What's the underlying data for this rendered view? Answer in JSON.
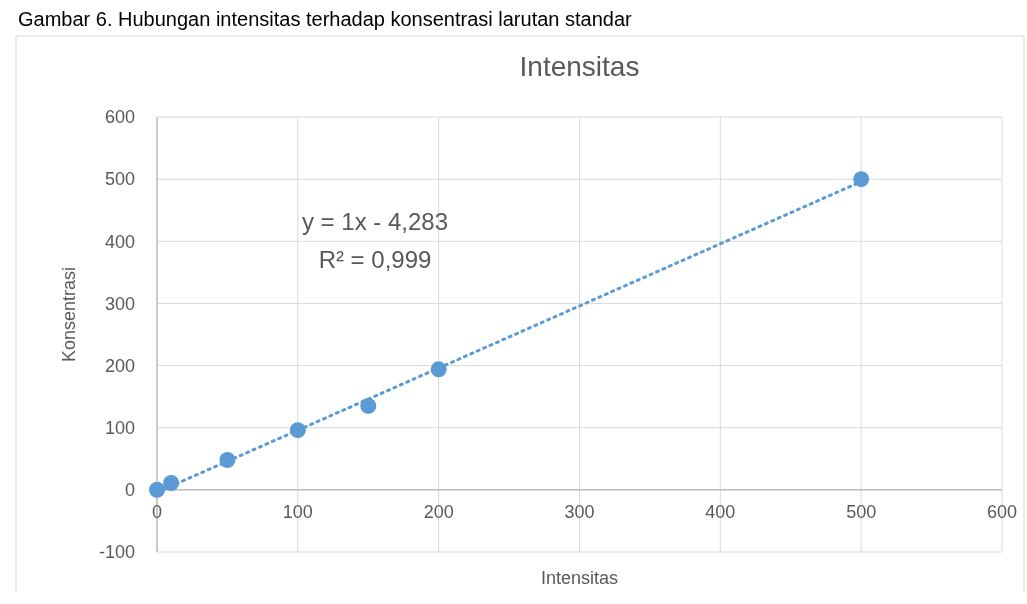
{
  "chart_data": {
    "type": "scatter",
    "title": "Intensitas",
    "xlabel": "Intensitas",
    "ylabel": "Konsentrasi",
    "annotations": [
      "Gambar 6. Hubungan intensitas terhadap konsentrasi larutan standar",
      "y = 1x - 4,283",
      "R² = 0,999"
    ],
    "xlim": [
      0,
      600
    ],
    "xticks": [
      0,
      100,
      200,
      300,
      400,
      500,
      600
    ],
    "ylim": [
      -100,
      600
    ],
    "yticks": [
      -100,
      0,
      100,
      200,
      300,
      400,
      500,
      600
    ],
    "grid": true,
    "series": [
      {
        "color": "#5b9bd5",
        "marker": "circle",
        "x": [
          0,
          10,
          50,
          100,
          150,
          200,
          500
        ],
        "values": [
          0,
          11,
          48,
          96,
          135,
          194,
          500
        ]
      },
      {
        "type": "line",
        "color": "#5b9bd5",
        "line_style": "dotted",
        "x": [
          0,
          500
        ],
        "values": [
          -4,
          496
        ]
      }
    ]
  }
}
